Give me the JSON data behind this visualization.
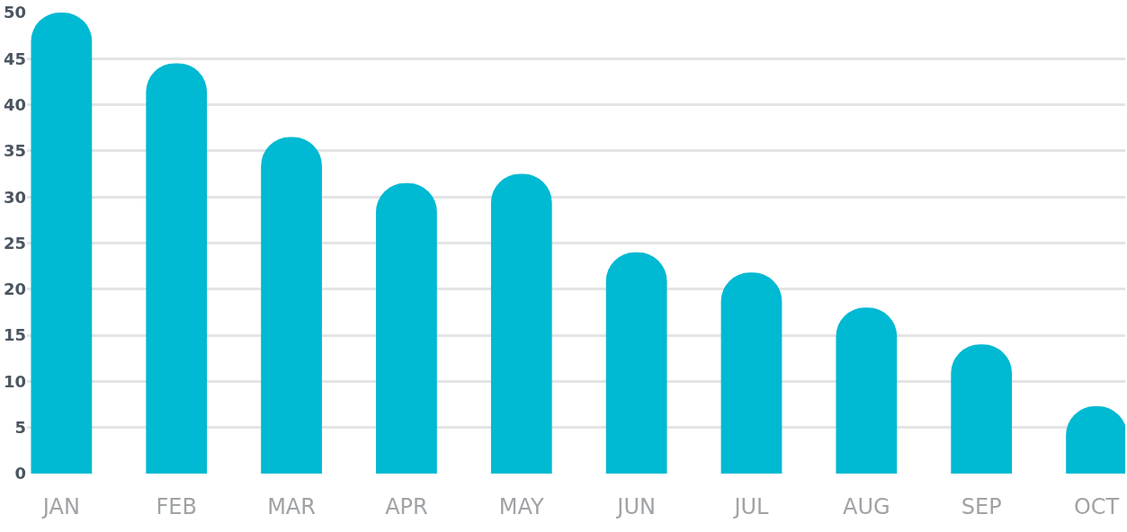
{
  "chart_data": {
    "type": "bar",
    "categories": [
      "JAN",
      "FEB",
      "MAR",
      "APR",
      "MAY",
      "JUN",
      "JUL",
      "AUG",
      "SEP",
      "OCT"
    ],
    "values": [
      50,
      44.5,
      36.5,
      31.5,
      32.5,
      24,
      21.8,
      18,
      14,
      7.3
    ],
    "color": "#00b9d2",
    "ylim": [
      0,
      50
    ],
    "yticks": [
      0,
      5,
      10,
      15,
      20,
      25,
      30,
      35,
      40,
      45,
      50
    ],
    "grid": "y"
  }
}
